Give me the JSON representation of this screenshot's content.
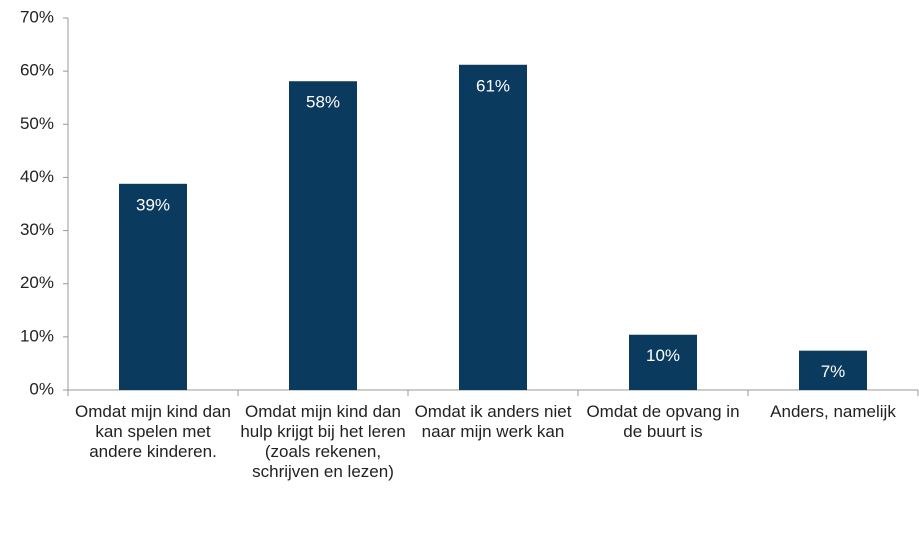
{
  "chart_data": {
    "type": "bar",
    "categories": [
      "Omdat mijn kind dan kan spelen met andere kinderen.",
      "Omdat mijn kind dan hulp krijgt bij het leren (zoals rekenen, schrijven en lezen)",
      "Omdat ik anders niet naar mijn werk kan",
      "Omdat de opvang in de buurt is",
      "Anders, namelijk"
    ],
    "values": [
      38.8,
      58.1,
      61.2,
      10.4,
      7.4
    ],
    "value_labels": [
      "39%",
      "58%",
      "61%",
      "10%",
      "7%"
    ],
    "color": "#0b3a5f",
    "ylim": [
      0,
      70
    ],
    "yticks": [
      {
        "value": 0,
        "label": "0%"
      },
      {
        "value": 10,
        "label": "10%"
      },
      {
        "value": 20,
        "label": "20%"
      },
      {
        "value": 30,
        "label": "30%"
      },
      {
        "value": 40,
        "label": "40%"
      },
      {
        "value": 50,
        "label": "50%"
      },
      {
        "value": 60,
        "label": "60%"
      },
      {
        "value": 70,
        "label": "70%"
      }
    ],
    "grid": false
  }
}
